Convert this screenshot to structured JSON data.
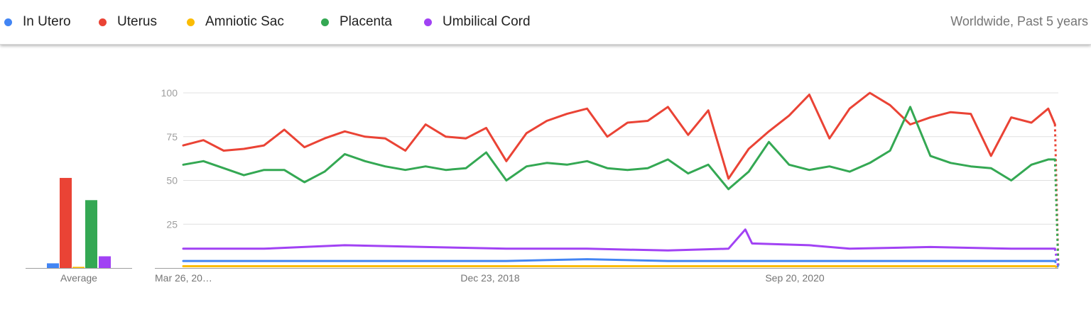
{
  "header": {
    "legend": [
      {
        "label": "In Utero",
        "color": "#4285f4"
      },
      {
        "label": "Uterus",
        "color": "#ea4335"
      },
      {
        "label": "Amniotic Sac",
        "color": "#fbbc04"
      },
      {
        "label": "Placenta",
        "color": "#34a853"
      },
      {
        "label": "Umbilical Cord",
        "color": "#a142f4"
      }
    ],
    "region_period": "Worldwide, Past 5 years"
  },
  "chart_data": {
    "type": "line",
    "average_label": "Average",
    "averages": [
      {
        "name": "In Utero",
        "value": 4
      },
      {
        "name": "Uterus",
        "value": 77
      },
      {
        "name": "Amniotic Sac",
        "value": 1
      },
      {
        "name": "Placenta",
        "value": 58
      },
      {
        "name": "Umbilical Cord",
        "value": 10
      }
    ],
    "ylim": [
      0,
      100
    ],
    "y_ticks": [
      "100",
      "75",
      "50",
      "25"
    ],
    "x_tick_labels": [
      "Mar 26, 20…",
      "Dec 23, 2018",
      "Sep 20, 2020"
    ],
    "grid": true,
    "x_start": "2017-03-26",
    "x_end": "2022-03-20",
    "series": [
      {
        "name": "Uterus",
        "color": "#ea4335",
        "points": [
          [
            "2017-03-26",
            70
          ],
          [
            "2017-05-07",
            73
          ],
          [
            "2017-06-18",
            67
          ],
          [
            "2017-07-30",
            68
          ],
          [
            "2017-09-10",
            70
          ],
          [
            "2017-10-22",
            79
          ],
          [
            "2017-12-03",
            69
          ],
          [
            "2018-01-14",
            74
          ],
          [
            "2018-02-25",
            78
          ],
          [
            "2018-04-08",
            75
          ],
          [
            "2018-05-20",
            74
          ],
          [
            "2018-07-01",
            67
          ],
          [
            "2018-08-12",
            82
          ],
          [
            "2018-09-23",
            75
          ],
          [
            "2018-11-04",
            74
          ],
          [
            "2018-12-16",
            80
          ],
          [
            "2019-01-27",
            61
          ],
          [
            "2019-03-10",
            77
          ],
          [
            "2019-04-21",
            84
          ],
          [
            "2019-06-02",
            88
          ],
          [
            "2019-07-14",
            91
          ],
          [
            "2019-08-25",
            75
          ],
          [
            "2019-10-06",
            83
          ],
          [
            "2019-11-17",
            84
          ],
          [
            "2019-12-29",
            92
          ],
          [
            "2020-02-09",
            76
          ],
          [
            "2020-03-22",
            90
          ],
          [
            "2020-05-03",
            51
          ],
          [
            "2020-06-14",
            68
          ],
          [
            "2020-07-26",
            78
          ],
          [
            "2020-09-06",
            87
          ],
          [
            "2020-10-18",
            99
          ],
          [
            "2020-11-29",
            74
          ],
          [
            "2021-01-10",
            91
          ],
          [
            "2021-02-21",
            100
          ],
          [
            "2021-04-04",
            93
          ],
          [
            "2021-05-16",
            82
          ],
          [
            "2021-06-27",
            86
          ],
          [
            "2021-08-08",
            89
          ],
          [
            "2021-09-19",
            88
          ],
          [
            "2021-10-31",
            64
          ],
          [
            "2021-12-12",
            86
          ],
          [
            "2022-01-23",
            83
          ],
          [
            "2022-02-27",
            91
          ],
          [
            "2022-03-13",
            82
          ],
          [
            "2022-03-20",
            0
          ]
        ]
      },
      {
        "name": "Placenta",
        "color": "#34a853",
        "points": [
          [
            "2017-03-26",
            59
          ],
          [
            "2017-05-07",
            61
          ],
          [
            "2017-06-18",
            57
          ],
          [
            "2017-07-30",
            53
          ],
          [
            "2017-09-10",
            56
          ],
          [
            "2017-10-22",
            56
          ],
          [
            "2017-12-03",
            49
          ],
          [
            "2018-01-14",
            55
          ],
          [
            "2018-02-25",
            65
          ],
          [
            "2018-04-08",
            61
          ],
          [
            "2018-05-20",
            58
          ],
          [
            "2018-07-01",
            56
          ],
          [
            "2018-08-12",
            58
          ],
          [
            "2018-09-23",
            56
          ],
          [
            "2018-11-04",
            57
          ],
          [
            "2018-12-16",
            66
          ],
          [
            "2019-01-27",
            50
          ],
          [
            "2019-03-10",
            58
          ],
          [
            "2019-04-21",
            60
          ],
          [
            "2019-06-02",
            59
          ],
          [
            "2019-07-14",
            61
          ],
          [
            "2019-08-25",
            57
          ],
          [
            "2019-10-06",
            56
          ],
          [
            "2019-11-17",
            57
          ],
          [
            "2019-12-29",
            62
          ],
          [
            "2020-02-09",
            54
          ],
          [
            "2020-03-22",
            59
          ],
          [
            "2020-05-03",
            45
          ],
          [
            "2020-06-14",
            55
          ],
          [
            "2020-07-26",
            72
          ],
          [
            "2020-09-06",
            59
          ],
          [
            "2020-10-18",
            56
          ],
          [
            "2020-11-29",
            58
          ],
          [
            "2021-01-10",
            55
          ],
          [
            "2021-02-21",
            60
          ],
          [
            "2021-04-04",
            67
          ],
          [
            "2021-05-16",
            92
          ],
          [
            "2021-06-27",
            64
          ],
          [
            "2021-08-08",
            60
          ],
          [
            "2021-09-19",
            58
          ],
          [
            "2021-10-31",
            57
          ],
          [
            "2021-12-12",
            50
          ],
          [
            "2022-01-23",
            59
          ],
          [
            "2022-02-27",
            62
          ],
          [
            "2022-03-13",
            62
          ],
          [
            "2022-03-20",
            0
          ]
        ]
      },
      {
        "name": "Umbilical Cord",
        "color": "#a142f4",
        "points": [
          [
            "2017-03-26",
            11
          ],
          [
            "2017-09-10",
            11
          ],
          [
            "2018-02-25",
            13
          ],
          [
            "2018-08-12",
            12
          ],
          [
            "2019-01-27",
            11
          ],
          [
            "2019-07-14",
            11
          ],
          [
            "2019-12-29",
            10
          ],
          [
            "2020-05-03",
            11
          ],
          [
            "2020-06-07",
            22
          ],
          [
            "2020-06-21",
            14
          ],
          [
            "2020-10-18",
            13
          ],
          [
            "2021-01-10",
            11
          ],
          [
            "2021-06-27",
            12
          ],
          [
            "2021-12-12",
            11
          ],
          [
            "2022-03-13",
            11
          ],
          [
            "2022-03-20",
            0
          ]
        ]
      },
      {
        "name": "In Utero",
        "color": "#4285f4",
        "points": [
          [
            "2017-03-26",
            4
          ],
          [
            "2017-09-10",
            4
          ],
          [
            "2018-02-25",
            4
          ],
          [
            "2018-08-12",
            4
          ],
          [
            "2019-01-27",
            4
          ],
          [
            "2019-07-14",
            5
          ],
          [
            "2019-12-29",
            4
          ],
          [
            "2020-06-14",
            4
          ],
          [
            "2020-12-13",
            4
          ],
          [
            "2021-06-27",
            4
          ],
          [
            "2021-12-12",
            4
          ],
          [
            "2022-03-13",
            4
          ],
          [
            "2022-03-20",
            0
          ]
        ]
      },
      {
        "name": "Amniotic Sac",
        "color": "#fbbc04",
        "points": [
          [
            "2017-03-26",
            1
          ],
          [
            "2017-09-10",
            1
          ],
          [
            "2018-08-12",
            1
          ],
          [
            "2019-07-14",
            1
          ],
          [
            "2020-06-14",
            1
          ],
          [
            "2021-06-27",
            1
          ],
          [
            "2022-03-13",
            1
          ],
          [
            "2022-03-20",
            0
          ]
        ]
      }
    ]
  }
}
